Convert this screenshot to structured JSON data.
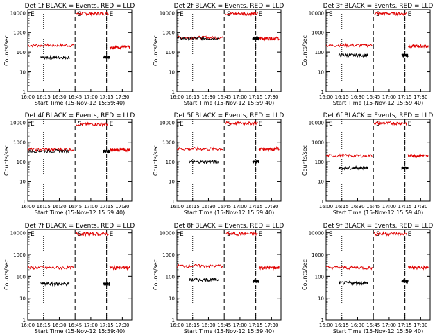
{
  "chart_data": [
    {
      "type": "line",
      "title": "Det 1f BLACK = Events, RED = LLD",
      "xlabel": "Start Time (15-Nov-12 15:59:40)",
      "ylabel": "Counts/sec",
      "ylog": true,
      "xticks": [
        "16:00",
        "16:15",
        "16:30",
        "16:45",
        "17:00",
        "17:15",
        "17:30"
      ],
      "yticks": [
        "1",
        "10",
        "100",
        "1000",
        "10000"
      ],
      "dotted_lines": [
        "16:15",
        "17:15"
      ],
      "dashed_lines": [
        "16:45",
        "17:15"
      ],
      "markers": [
        {
          "text": "E",
          "x": "16:00"
        },
        {
          "text": "S",
          "x": "16:45"
        },
        {
          "text": "E",
          "x": "17:15"
        }
      ],
      "series": [
        {
          "color": "#e00000",
          "segments": [
            {
              "start": 16.0,
              "end": 16.73,
              "level": 220
            },
            {
              "start": 16.76,
              "end": 17.28,
              "level": 9000
            },
            {
              "start": 17.3,
              "end": 17.62,
              "level": 180
            }
          ]
        },
        {
          "color": "#000000",
          "segments": [
            {
              "start": 16.2,
              "end": 16.66,
              "level": 55
            },
            {
              "start": 17.2,
              "end": 17.3,
              "level": 55
            }
          ]
        }
      ]
    },
    {
      "type": "line",
      "title": "Det 2f BLACK = Events, RED = LLD",
      "xlabel": "Start Time (15-Nov-12 15:59:40)",
      "ylabel": "Counts/sec",
      "ylog": true,
      "xticks": [
        "16:00",
        "16:15",
        "16:30",
        "16:45",
        "17:00",
        "17:15",
        "17:30"
      ],
      "yticks": [
        "1",
        "10",
        "100",
        "1000",
        "10000"
      ],
      "dotted_lines": [
        "16:15",
        "17:15"
      ],
      "dashed_lines": [
        "16:45",
        "17:15"
      ],
      "markers": [
        {
          "text": "E",
          "x": "16:00"
        },
        {
          "text": "S",
          "x": "16:45"
        },
        {
          "text": "E",
          "x": "17:15"
        }
      ],
      "series": [
        {
          "color": "#e00000",
          "segments": [
            {
              "start": 16.0,
              "end": 16.73,
              "level": 550
            },
            {
              "start": 16.76,
              "end": 17.28,
              "level": 9000
            },
            {
              "start": 17.3,
              "end": 17.62,
              "level": 500
            }
          ]
        },
        {
          "color": "#000000",
          "segments": [
            {
              "start": 16.0,
              "end": 16.66,
              "level": 500
            },
            {
              "start": 17.2,
              "end": 17.3,
              "level": 500
            }
          ]
        }
      ]
    },
    {
      "type": "line",
      "title": "Det 3f BLACK = Events, RED = LLD",
      "xlabel": "Start Time (15-Nov-12 15:59:40)",
      "ylabel": "Counts/sec",
      "ylog": true,
      "xticks": [
        "16:00",
        "16:15",
        "16:30",
        "16:45",
        "17:00",
        "17:15",
        "17:30"
      ],
      "yticks": [
        "1",
        "10",
        "100",
        "1000",
        "10000"
      ],
      "dotted_lines": [
        "16:15",
        "17:15"
      ],
      "dashed_lines": [
        "16:45",
        "17:15"
      ],
      "markers": [
        {
          "text": "E",
          "x": "16:00"
        },
        {
          "text": "S",
          "x": "16:45"
        },
        {
          "text": "E",
          "x": "17:15"
        }
      ],
      "series": [
        {
          "color": "#e00000",
          "segments": [
            {
              "start": 16.0,
              "end": 16.73,
              "level": 220
            },
            {
              "start": 16.76,
              "end": 17.28,
              "level": 9000
            },
            {
              "start": 17.3,
              "end": 17.62,
              "level": 200
            }
          ]
        },
        {
          "color": "#000000",
          "segments": [
            {
              "start": 16.2,
              "end": 16.66,
              "level": 70
            },
            {
              "start": 17.2,
              "end": 17.3,
              "level": 70
            }
          ]
        }
      ]
    },
    {
      "type": "line",
      "title": "Det 4f BLACK = Events, RED = LLD",
      "xlabel": "Start Time (15-Nov-12 15:59:40)",
      "ylabel": "Counts/sec",
      "ylog": true,
      "xticks": [
        "16:00",
        "16:15",
        "16:30",
        "16:45",
        "17:00",
        "17:15",
        "17:30"
      ],
      "yticks": [
        "1",
        "10",
        "100",
        "1000",
        "10000"
      ],
      "dotted_lines": [
        "16:15",
        "17:15"
      ],
      "dashed_lines": [
        "16:45",
        "17:15"
      ],
      "markers": [
        {
          "text": "E",
          "x": "16:00"
        },
        {
          "text": "S",
          "x": "16:45"
        },
        {
          "text": "E",
          "x": "17:15"
        }
      ],
      "series": [
        {
          "color": "#e00000",
          "segments": [
            {
              "start": 16.0,
              "end": 16.73,
              "level": 420
            },
            {
              "start": 16.76,
              "end": 17.28,
              "level": 8000
            },
            {
              "start": 17.3,
              "end": 17.62,
              "level": 400
            }
          ]
        },
        {
          "color": "#000000",
          "segments": [
            {
              "start": 16.0,
              "end": 16.66,
              "level": 350
            },
            {
              "start": 17.2,
              "end": 17.3,
              "level": 350
            }
          ]
        }
      ]
    },
    {
      "type": "line",
      "title": "Det 5f BLACK = Events, RED = LLD",
      "xlabel": "Start Time (15-Nov-12 15:59:40)",
      "ylabel": "Counts/sec",
      "ylog": true,
      "xticks": [
        "16:00",
        "16:15",
        "16:30",
        "16:45",
        "17:00",
        "17:15",
        "17:30"
      ],
      "yticks": [
        "1",
        "10",
        "100",
        "1000",
        "10000"
      ],
      "dotted_lines": [
        "16:15",
        "17:15"
      ],
      "dashed_lines": [
        "16:45",
        "17:15"
      ],
      "markers": [
        {
          "text": "E",
          "x": "16:00"
        },
        {
          "text": "S",
          "x": "16:45"
        },
        {
          "text": "E",
          "x": "17:15"
        }
      ],
      "series": [
        {
          "color": "#e00000",
          "segments": [
            {
              "start": 16.0,
              "end": 16.73,
              "level": 450
            },
            {
              "start": 16.76,
              "end": 17.28,
              "level": 9000
            },
            {
              "start": 17.3,
              "end": 17.62,
              "level": 450
            }
          ]
        },
        {
          "color": "#000000",
          "segments": [
            {
              "start": 16.2,
              "end": 16.66,
              "level": 100
            },
            {
              "start": 17.2,
              "end": 17.3,
              "level": 100
            }
          ]
        }
      ]
    },
    {
      "type": "line",
      "title": "Det 6f BLACK = Events, RED = LLD",
      "xlabel": "Start Time (15-Nov-12 15:59:40)",
      "ylabel": "Counts/sec",
      "ylog": true,
      "xticks": [
        "16:00",
        "16:15",
        "16:30",
        "16:45",
        "17:00",
        "17:15",
        "17:30"
      ],
      "yticks": [
        "1",
        "10",
        "100",
        "1000",
        "10000"
      ],
      "dotted_lines": [
        "16:15",
        "17:15"
      ],
      "dashed_lines": [
        "16:45",
        "17:15"
      ],
      "markers": [
        {
          "text": "E",
          "x": "16:00"
        },
        {
          "text": "S",
          "x": "16:45"
        },
        {
          "text": "E",
          "x": "17:15"
        }
      ],
      "series": [
        {
          "color": "#e00000",
          "segments": [
            {
              "start": 16.0,
              "end": 16.73,
              "level": 200
            },
            {
              "start": 16.76,
              "end": 17.28,
              "level": 9000
            },
            {
              "start": 17.3,
              "end": 17.62,
              "level": 200
            }
          ]
        },
        {
          "color": "#000000",
          "segments": [
            {
              "start": 16.2,
              "end": 16.66,
              "level": 50
            },
            {
              "start": 17.2,
              "end": 17.3,
              "level": 50
            }
          ]
        }
      ]
    },
    {
      "type": "line",
      "title": "Det 7f BLACK = Events, RED = LLD",
      "xlabel": "Start Time (15-Nov-12 15:59:40)",
      "ylabel": "Counts/sec",
      "ylog": true,
      "xticks": [
        "16:00",
        "16:15",
        "16:30",
        "16:45",
        "17:00",
        "17:15",
        "17:30"
      ],
      "yticks": [
        "1",
        "10",
        "100",
        "1000",
        "10000"
      ],
      "dotted_lines": [
        "16:15",
        "17:15"
      ],
      "dashed_lines": [
        "16:45",
        "17:15"
      ],
      "markers": [
        {
          "text": "E",
          "x": "16:00"
        },
        {
          "text": "S",
          "x": "16:45"
        },
        {
          "text": "E",
          "x": "17:15"
        }
      ],
      "series": [
        {
          "color": "#e00000",
          "segments": [
            {
              "start": 16.0,
              "end": 16.73,
              "level": 250
            },
            {
              "start": 16.76,
              "end": 17.28,
              "level": 9000
            },
            {
              "start": 17.3,
              "end": 17.62,
              "level": 250
            }
          ]
        },
        {
          "color": "#000000",
          "segments": [
            {
              "start": 16.2,
              "end": 16.66,
              "level": 45
            },
            {
              "start": 17.2,
              "end": 17.3,
              "level": 45
            }
          ]
        }
      ]
    },
    {
      "type": "line",
      "title": "Det 8f BLACK = Events, RED = LLD",
      "xlabel": "Start Time (15-Nov-12 15:59:40)",
      "ylabel": "Counts/sec",
      "ylog": true,
      "xticks": [
        "16:00",
        "16:15",
        "16:30",
        "16:45",
        "17:00",
        "17:15",
        "17:30"
      ],
      "yticks": [
        "1",
        "10",
        "100",
        "1000",
        "10000"
      ],
      "dotted_lines": [
        "16:15",
        "17:15"
      ],
      "dashed_lines": [
        "16:45",
        "17:15"
      ],
      "markers": [
        {
          "text": "E",
          "x": "16:00"
        },
        {
          "text": "S",
          "x": "16:45"
        },
        {
          "text": "E",
          "x": "17:15"
        }
      ],
      "series": [
        {
          "color": "#e00000",
          "segments": [
            {
              "start": 16.0,
              "end": 16.73,
              "level": 300
            },
            {
              "start": 16.76,
              "end": 17.28,
              "level": 9000
            },
            {
              "start": 17.3,
              "end": 17.62,
              "level": 250
            }
          ]
        },
        {
          "color": "#000000",
          "segments": [
            {
              "start": 16.2,
              "end": 16.66,
              "level": 70
            },
            {
              "start": 17.2,
              "end": 17.3,
              "level": 60
            }
          ]
        }
      ]
    },
    {
      "type": "line",
      "title": "Det 9f BLACK = Events, RED = LLD",
      "xlabel": "Start Time (15-Nov-12 15:59:40)",
      "ylabel": "Counts/sec",
      "ylog": true,
      "xticks": [
        "16:00",
        "16:15",
        "16:30",
        "16:45",
        "17:00",
        "17:15",
        "17:30"
      ],
      "yticks": [
        "1",
        "10",
        "100",
        "1000",
        "10000"
      ],
      "dotted_lines": [
        "16:15",
        "17:15"
      ],
      "dashed_lines": [
        "16:45",
        "17:15"
      ],
      "markers": [
        {
          "text": "E",
          "x": "16:00"
        },
        {
          "text": "S",
          "x": "16:45"
        },
        {
          "text": "E",
          "x": "17:15"
        }
      ],
      "series": [
        {
          "color": "#e00000",
          "segments": [
            {
              "start": 16.0,
              "end": 16.73,
              "level": 250
            },
            {
              "start": 16.76,
              "end": 17.28,
              "level": 9000
            },
            {
              "start": 17.3,
              "end": 17.62,
              "level": 250
            }
          ]
        },
        {
          "color": "#000000",
          "segments": [
            {
              "start": 16.2,
              "end": 16.66,
              "level": 50
            },
            {
              "start": 17.2,
              "end": 17.3,
              "level": 60
            }
          ]
        }
      ]
    }
  ]
}
